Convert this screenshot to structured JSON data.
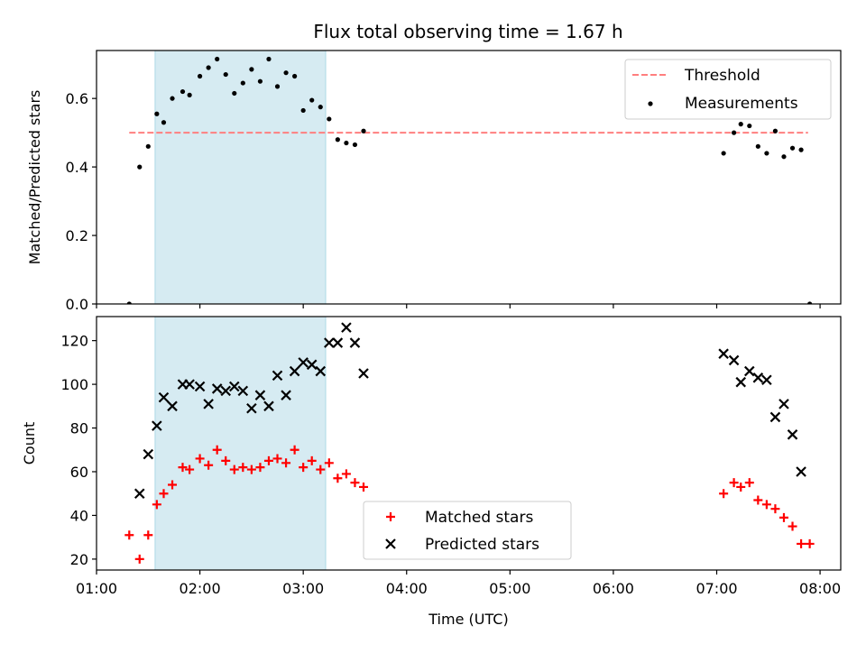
{
  "title": "Flux total observing time = 1.67 h",
  "colors": {
    "threshold": "#ff7f7f",
    "measurements": "#000000",
    "matched": "#ff0000",
    "predicted": "#000000",
    "shade": "#add8e6"
  },
  "chart_data": [
    {
      "type": "scatter",
      "title": "Flux total observing time = 1.67 h",
      "xlabel": "",
      "ylabel": "Matched/Predicted stars",
      "xlim": [
        "01:00",
        "08:12"
      ],
      "ylim": [
        0,
        0.74
      ],
      "yticks": [
        "0.0",
        "0.2",
        "0.4",
        "0.6"
      ],
      "grid": false,
      "legend_position": "top-right",
      "shaded_x_range": [
        "01:34",
        "03:13"
      ],
      "threshold": {
        "name": "Threshold",
        "value": 0.5,
        "x_range": [
          "01:19",
          "07:53"
        ],
        "style": "dashed"
      },
      "series": [
        {
          "name": "Measurements",
          "marker": "dot",
          "points": [
            [
              "01:19",
              0.0
            ],
            [
              "01:25",
              0.4
            ],
            [
              "01:30",
              0.46
            ],
            [
              "01:35",
              0.555
            ],
            [
              "01:39",
              0.53
            ],
            [
              "01:44",
              0.6
            ],
            [
              "01:50",
              0.62
            ],
            [
              "01:54",
              0.61
            ],
            [
              "02:00",
              0.665
            ],
            [
              "02:05",
              0.69
            ],
            [
              "02:10",
              0.715
            ],
            [
              "02:15",
              0.67
            ],
            [
              "02:20",
              0.615
            ],
            [
              "02:25",
              0.645
            ],
            [
              "02:30",
              0.685
            ],
            [
              "02:35",
              0.65
            ],
            [
              "02:40",
              0.715
            ],
            [
              "02:45",
              0.635
            ],
            [
              "02:50",
              0.675
            ],
            [
              "02:55",
              0.665
            ],
            [
              "03:00",
              0.565
            ],
            [
              "03:05",
              0.595
            ],
            [
              "03:10",
              0.575
            ],
            [
              "03:15",
              0.54
            ],
            [
              "03:20",
              0.48
            ],
            [
              "03:25",
              0.47
            ],
            [
              "03:30",
              0.465
            ],
            [
              "03:35",
              0.505
            ],
            [
              "07:04",
              0.44
            ],
            [
              "07:10",
              0.5
            ],
            [
              "07:14",
              0.525
            ],
            [
              "07:19",
              0.52
            ],
            [
              "07:24",
              0.46
            ],
            [
              "07:29",
              0.44
            ],
            [
              "07:34",
              0.505
            ],
            [
              "07:39",
              0.43
            ],
            [
              "07:44",
              0.455
            ],
            [
              "07:49",
              0.45
            ],
            [
              "07:54",
              0.0
            ]
          ]
        }
      ]
    },
    {
      "type": "scatter",
      "title": "",
      "xlabel": "Time (UTC)",
      "ylabel": "Count",
      "xlim": [
        "01:00",
        "08:12"
      ],
      "ylim": [
        15,
        131
      ],
      "xticks": [
        "01:00",
        "02:00",
        "03:00",
        "04:00",
        "05:00",
        "06:00",
        "07:00",
        "08:00"
      ],
      "yticks": [
        "20",
        "40",
        "60",
        "80",
        "100",
        "120"
      ],
      "grid": false,
      "legend_position": "bottom-center",
      "shaded_x_range": [
        "01:34",
        "03:13"
      ],
      "series": [
        {
          "name": "Matched stars",
          "marker": "plus",
          "points": [
            [
              "01:19",
              31
            ],
            [
              "01:25",
              20
            ],
            [
              "01:30",
              31
            ],
            [
              "01:35",
              45
            ],
            [
              "01:39",
              50
            ],
            [
              "01:44",
              54
            ],
            [
              "01:50",
              62
            ],
            [
              "01:54",
              61
            ],
            [
              "02:00",
              66
            ],
            [
              "02:05",
              63
            ],
            [
              "02:10",
              70
            ],
            [
              "02:15",
              65
            ],
            [
              "02:20",
              61
            ],
            [
              "02:25",
              62
            ],
            [
              "02:30",
              61
            ],
            [
              "02:35",
              62
            ],
            [
              "02:40",
              65
            ],
            [
              "02:45",
              66
            ],
            [
              "02:50",
              64
            ],
            [
              "02:55",
              70
            ],
            [
              "03:00",
              62
            ],
            [
              "03:05",
              65
            ],
            [
              "03:10",
              61
            ],
            [
              "03:15",
              64
            ],
            [
              "03:20",
              57
            ],
            [
              "03:25",
              59
            ],
            [
              "03:30",
              55
            ],
            [
              "03:35",
              53
            ],
            [
              "07:04",
              50
            ],
            [
              "07:10",
              55
            ],
            [
              "07:14",
              53
            ],
            [
              "07:19",
              55
            ],
            [
              "07:24",
              47
            ],
            [
              "07:29",
              45
            ],
            [
              "07:34",
              43
            ],
            [
              "07:39",
              39
            ],
            [
              "07:44",
              35
            ],
            [
              "07:49",
              27
            ],
            [
              "07:54",
              27
            ]
          ]
        },
        {
          "name": "Predicted stars",
          "marker": "x",
          "points": [
            [
              "01:25",
              50
            ],
            [
              "01:30",
              68
            ],
            [
              "01:35",
              81
            ],
            [
              "01:39",
              94
            ],
            [
              "01:44",
              90
            ],
            [
              "01:50",
              100
            ],
            [
              "01:54",
              100
            ],
            [
              "02:00",
              99
            ],
            [
              "02:05",
              91
            ],
            [
              "02:10",
              98
            ],
            [
              "02:15",
              97
            ],
            [
              "02:20",
              99
            ],
            [
              "02:25",
              97
            ],
            [
              "02:30",
              89
            ],
            [
              "02:35",
              95
            ],
            [
              "02:40",
              90
            ],
            [
              "02:45",
              104
            ],
            [
              "02:50",
              95
            ],
            [
              "02:55",
              106
            ],
            [
              "03:00",
              110
            ],
            [
              "03:05",
              109
            ],
            [
              "03:10",
              106
            ],
            [
              "03:15",
              119
            ],
            [
              "03:20",
              119
            ],
            [
              "03:25",
              126
            ],
            [
              "03:30",
              119
            ],
            [
              "03:35",
              105
            ],
            [
              "07:04",
              114
            ],
            [
              "07:10",
              111
            ],
            [
              "07:14",
              101
            ],
            [
              "07:19",
              106
            ],
            [
              "07:24",
              103
            ],
            [
              "07:29",
              102
            ],
            [
              "07:34",
              85
            ],
            [
              "07:39",
              91
            ],
            [
              "07:44",
              77
            ],
            [
              "07:49",
              60
            ]
          ]
        }
      ]
    }
  ]
}
